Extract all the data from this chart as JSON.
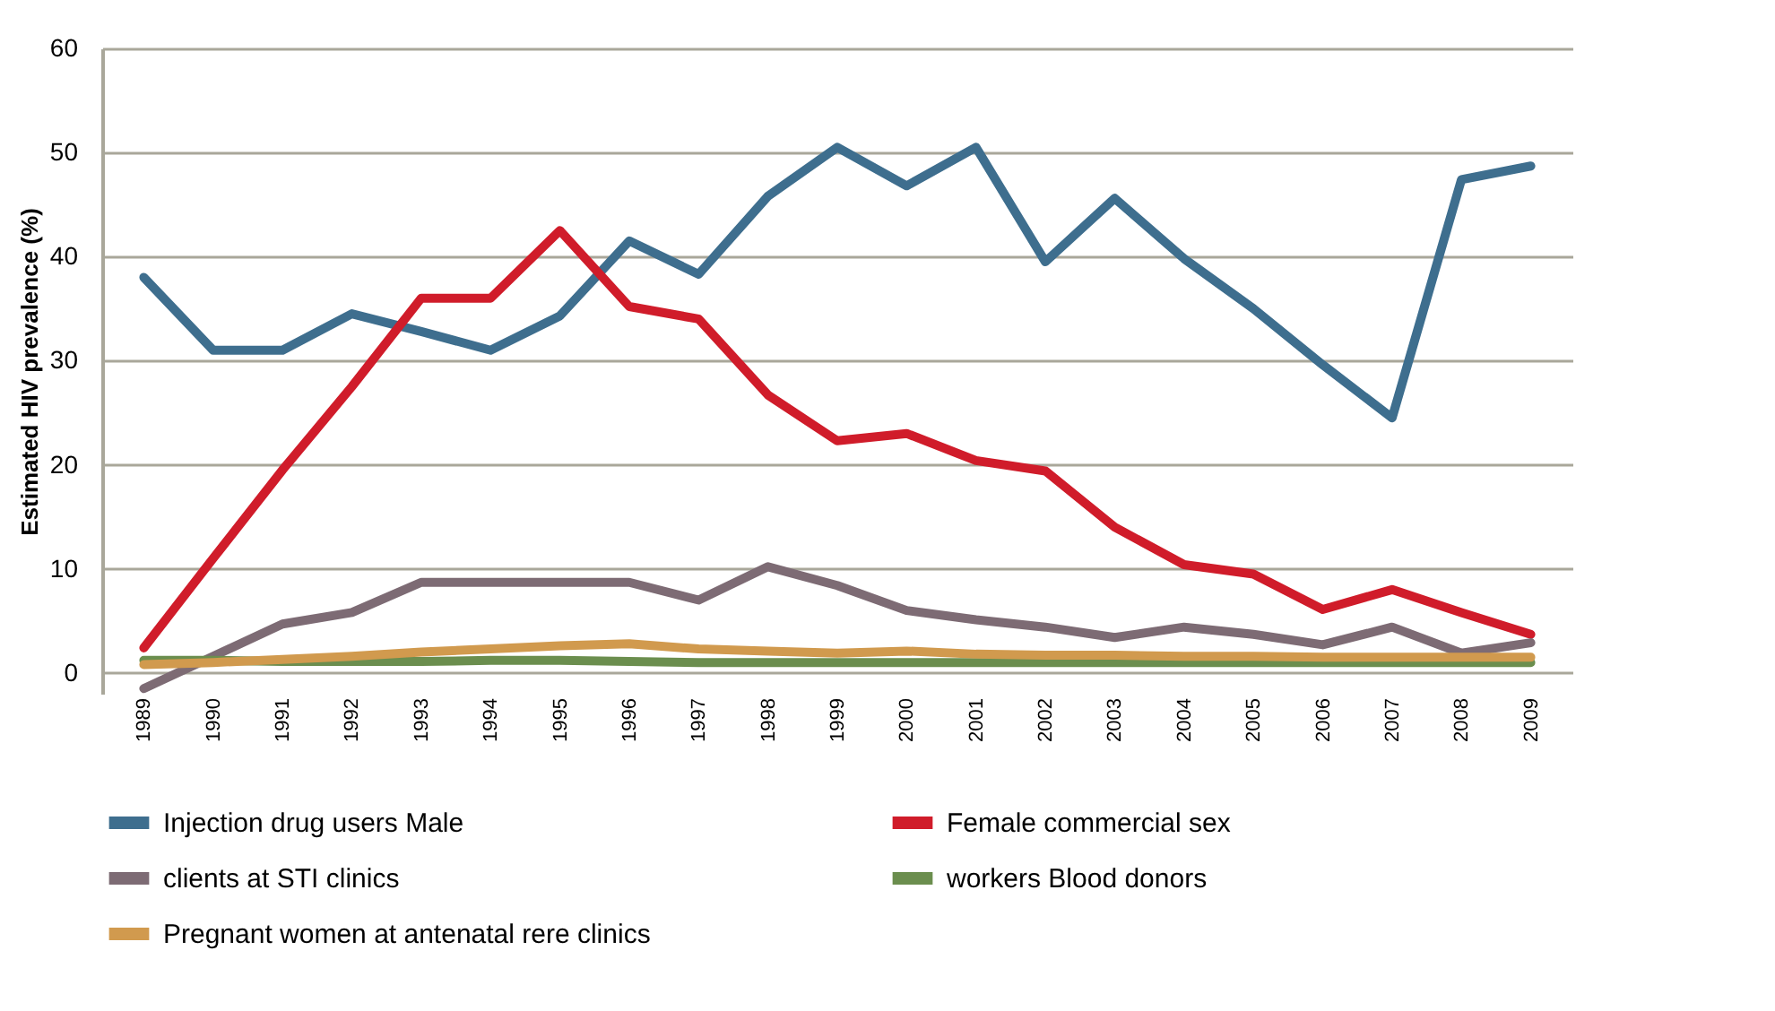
{
  "chart_data": {
    "type": "line",
    "ylabel": "Estimated HIV prevalence (%)",
    "categories": [
      "1989",
      "1990",
      "1991",
      "1992",
      "1993",
      "1994",
      "1995",
      "1996",
      "1997",
      "1998",
      "1999",
      "2000",
      "2001",
      "2002",
      "2003",
      "2004",
      "2005",
      "2006",
      "2007",
      "2008",
      "2009"
    ],
    "series": [
      {
        "name": "Injection drug users Male",
        "color": "#3e6e8e",
        "values": [
          38,
          31,
          31,
          34.5,
          32.8,
          31,
          34.3,
          41.5,
          38.3,
          45.8,
          50.5,
          46.8,
          50.5,
          39.5,
          45.6,
          39.8,
          35,
          29.6,
          24.5,
          47.4,
          48.7
        ]
      },
      {
        "name": "Female commercial sex",
        "color": "#d01c2a",
        "values": [
          2.4,
          11,
          19.5,
          27.5,
          36,
          36,
          42.5,
          35.2,
          34,
          26.7,
          22.3,
          23,
          20.4,
          19.4,
          14,
          10.4,
          9.5,
          6.1,
          8,
          5.8,
          3.7
        ]
      },
      {
        "name": "clients at STI clinics",
        "color": "#7d6b74",
        "values": [
          -1.5,
          1.6,
          4.7,
          5.8,
          8.7,
          8.7,
          8.7,
          8.7,
          7,
          10.2,
          8.4,
          6,
          5.1,
          4.4,
          3.4,
          4.4,
          3.7,
          2.7,
          4.4,
          1.9,
          2.9
        ]
      },
      {
        "name": "workers Blood donors",
        "color": "#6b8e4e",
        "values": [
          1.2,
          1.2,
          1.1,
          1.1,
          1.1,
          1.2,
          1.2,
          1.1,
          1,
          1,
          1,
          1,
          1,
          1,
          1,
          1,
          1,
          1,
          1,
          1,
          1
        ]
      },
      {
        "name": "Pregnant women at antenatal rere clinics",
        "color": "#d19a4e",
        "values": [
          0.8,
          1,
          1.3,
          1.6,
          2,
          2.3,
          2.6,
          2.8,
          2.3,
          2.1,
          1.9,
          2.1,
          1.8,
          1.7,
          1.7,
          1.6,
          1.6,
          1.5,
          1.5,
          1.5,
          1.5
        ]
      }
    ],
    "ylim": [
      -2,
      60
    ],
    "yticks": [
      0,
      10,
      20,
      30,
      40,
      50,
      60
    ],
    "grid": "y",
    "legend": "bottom",
    "line_style": "solid",
    "marker": "none"
  }
}
